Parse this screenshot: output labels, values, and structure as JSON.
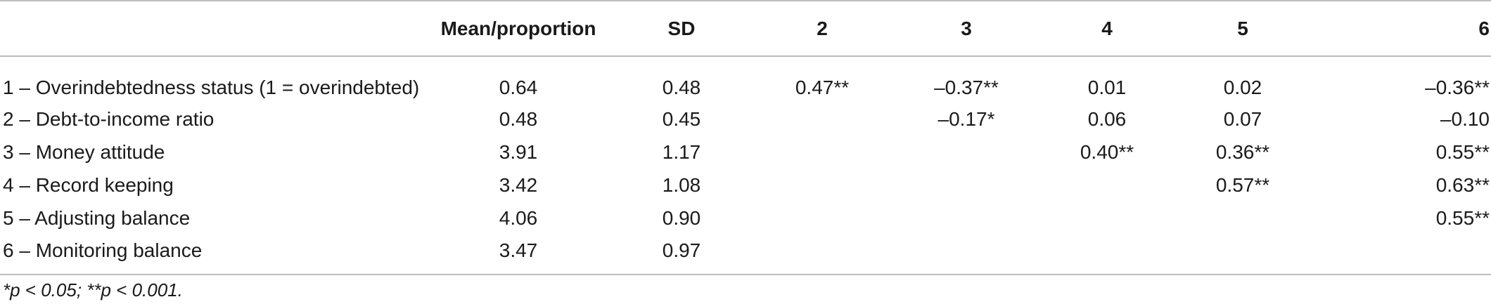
{
  "table": {
    "columns": [
      "",
      "Mean/proportion",
      "SD",
      "2",
      "3",
      "4",
      "5",
      "6"
    ],
    "rows": [
      [
        "1 – Overindebtedness status (1 = overindebted)",
        "0.64",
        "0.48",
        "0.47**",
        "–0.37**",
        "0.01",
        "0.02",
        "–0.36**"
      ],
      [
        "2 – Debt-to-income ratio",
        "0.48",
        "0.45",
        "",
        "–0.17*",
        "0.06",
        "0.07",
        "–0.10"
      ],
      [
        "3 – Money attitude",
        "3.91",
        "1.17",
        "",
        "",
        "0.40**",
        "0.36**",
        "0.55**"
      ],
      [
        "4 – Record keeping",
        "3.42",
        "1.08",
        "",
        "",
        "",
        "0.57**",
        "0.63**"
      ],
      [
        "5 – Adjusting balance",
        "4.06",
        "0.90",
        "",
        "",
        "",
        "",
        "0.55**"
      ],
      [
        "6 – Monitoring balance",
        "3.47",
        "0.97",
        "",
        "",
        "",
        "",
        ""
      ]
    ]
  },
  "footnote": "*p < 0.05; **p < 0.001."
}
